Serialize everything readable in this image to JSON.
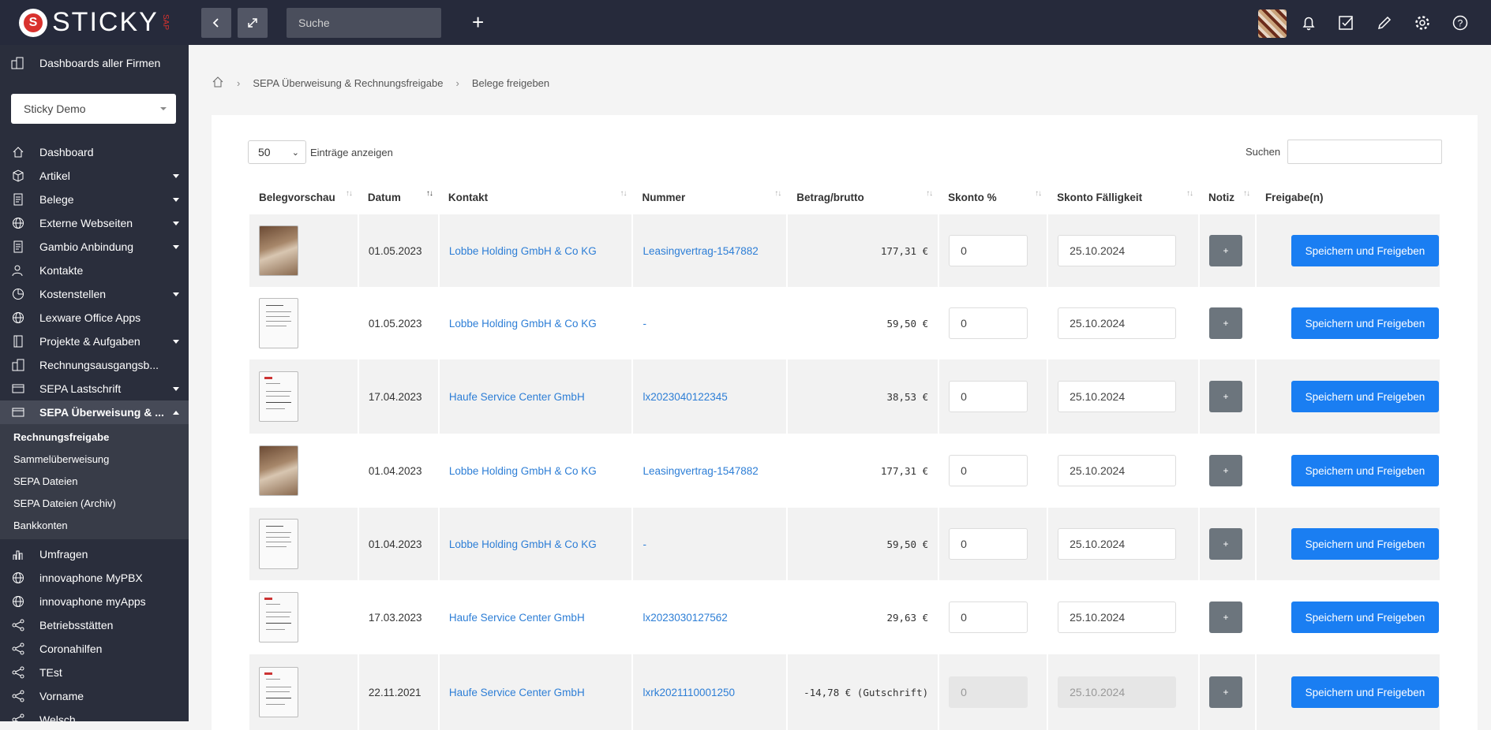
{
  "app": {
    "logo_text": "STICKY",
    "logo_sub": "SAP"
  },
  "topbar": {
    "search_placeholder": "Suche",
    "icons": [
      "back-icon",
      "expand-icon",
      "plus-icon",
      "bell-icon",
      "checkbox-icon",
      "pencil-icon",
      "gear-icon",
      "help-icon"
    ]
  },
  "sidebar": {
    "top_link": "Dashboards aller Firmen",
    "company_select": "Sticky Demo",
    "items": [
      {
        "label": "Dashboard",
        "icon": "home-icon",
        "arrow": false
      },
      {
        "label": "Artikel",
        "icon": "box-icon",
        "arrow": true
      },
      {
        "label": "Belege",
        "icon": "document-icon",
        "arrow": true
      },
      {
        "label": "Externe Webseiten",
        "icon": "globe-icon",
        "arrow": true
      },
      {
        "label": "Gambio Anbindung",
        "icon": "document-icon",
        "arrow": true
      },
      {
        "label": "Kontakte",
        "icon": "contact-icon",
        "arrow": false
      },
      {
        "label": "Kostenstellen",
        "icon": "pie-icon",
        "arrow": true
      },
      {
        "label": "Lexware Office Apps",
        "icon": "globe-icon",
        "arrow": false
      },
      {
        "label": "Projekte & Aufgaben",
        "icon": "book-icon",
        "arrow": true
      },
      {
        "label": "Rechnungsausgangsb...",
        "icon": "building-icon",
        "arrow": false
      },
      {
        "label": "SEPA Lastschrift",
        "icon": "card-icon",
        "arrow": true
      },
      {
        "label": "SEPA Überweisung & ...",
        "icon": "card-icon",
        "arrow": true
      }
    ],
    "subitems": [
      "Rechnungsfreigabe",
      "Sammelüberweisung",
      "SEPA Dateien",
      "SEPA Dateien (Archiv)",
      "Bankkonten"
    ],
    "lower_items": [
      {
        "label": "Umfragen",
        "icon": "chart-icon"
      },
      {
        "label": "innovaphone MyPBX",
        "icon": "globe-icon"
      },
      {
        "label": "innovaphone myApps",
        "icon": "globe-icon"
      },
      {
        "label": "Betriebsstätten",
        "icon": "share-icon"
      },
      {
        "label": "Coronahilfen",
        "icon": "share-icon"
      },
      {
        "label": "TEst",
        "icon": "share-icon"
      },
      {
        "label": "Vorname",
        "icon": "share-icon"
      },
      {
        "label": "Welsch",
        "icon": "share-icon"
      }
    ]
  },
  "breadcrumb": [
    "SEPA Überweisung & Rechnungsfreigabe",
    "Belege freigeben"
  ],
  "table_controls": {
    "length_value": "50",
    "length_label": "Einträge anzeigen",
    "search_label": "Suchen"
  },
  "columns": [
    "Belegvorschau",
    "Datum",
    "Kontakt",
    "Nummer",
    "Betrag/brutto",
    "Skonto %",
    "Skonto Fälligkeit",
    "Notiz",
    "Freigabe(n)"
  ],
  "rows": [
    {
      "thumb": "photo",
      "datum": "01.05.2023",
      "kontakt": "Lobbe Holding GmbH & Co KG",
      "nummer": "Leasingvertrag-1547882",
      "betrag": "177,31 €",
      "skonto": "0",
      "faelligkeit": "25.10.2024",
      "disabled": false
    },
    {
      "thumb": "doc",
      "datum": "01.05.2023",
      "kontakt": "Lobbe Holding GmbH & Co KG",
      "nummer": "-",
      "betrag": "59,50 €",
      "skonto": "0",
      "faelligkeit": "25.10.2024",
      "disabled": false
    },
    {
      "thumb": "invoice",
      "datum": "17.04.2023",
      "kontakt": "Haufe Service Center GmbH",
      "nummer": "lx2023040122345",
      "betrag": "38,53 €",
      "skonto": "0",
      "faelligkeit": "25.10.2024",
      "disabled": false
    },
    {
      "thumb": "photo",
      "datum": "01.04.2023",
      "kontakt": "Lobbe Holding GmbH & Co KG",
      "nummer": "Leasingvertrag-1547882",
      "betrag": "177,31 €",
      "skonto": "0",
      "faelligkeit": "25.10.2024",
      "disabled": false
    },
    {
      "thumb": "doc",
      "datum": "01.04.2023",
      "kontakt": "Lobbe Holding GmbH & Co KG",
      "nummer": "-",
      "betrag": "59,50 €",
      "skonto": "0",
      "faelligkeit": "25.10.2024",
      "disabled": false
    },
    {
      "thumb": "invoice",
      "datum": "17.03.2023",
      "kontakt": "Haufe Service Center GmbH",
      "nummer": "lx2023030127562",
      "betrag": "29,63 €",
      "skonto": "0",
      "faelligkeit": "25.10.2024",
      "disabled": false
    },
    {
      "thumb": "invoice",
      "datum": "22.11.2021",
      "kontakt": "Haufe Service Center GmbH",
      "nummer": "lxrk2021110001250",
      "betrag": "-14,78 € (Gutschrift)",
      "skonto": "0",
      "faelligkeit": "25.10.2024",
      "disabled": true
    }
  ],
  "actions": {
    "note_label": "+",
    "save_label": "Speichern und Freigeben"
  }
}
